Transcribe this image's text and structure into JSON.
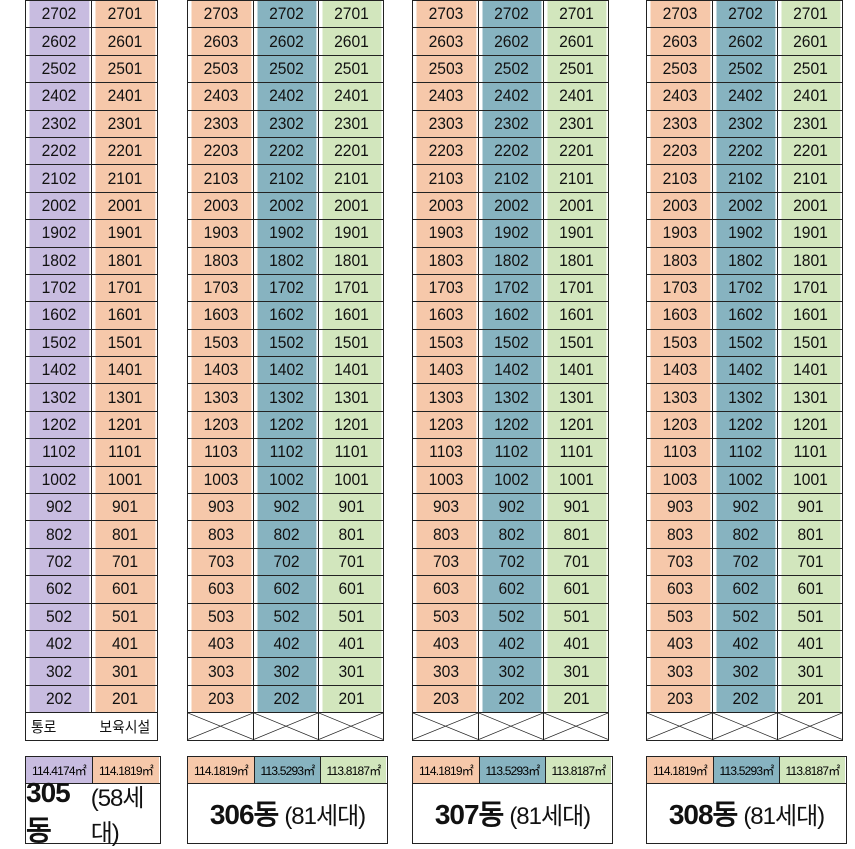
{
  "buildings": [
    {
      "id": "305",
      "name_bold": "305동",
      "name_rest": "(58세대)",
      "columns": [
        {
          "color": "#c8bce0",
          "units": [
            "2702",
            "2602",
            "2502",
            "2402",
            "2302",
            "2202",
            "2102",
            "2002",
            "1902",
            "1802",
            "1702",
            "1602",
            "1502",
            "1402",
            "1302",
            "1202",
            "1102",
            "1002",
            "902",
            "802",
            "702",
            "602",
            "502",
            "402",
            "302",
            "202"
          ]
        },
        {
          "color": "#f6c8aa",
          "units": [
            "2701",
            "2601",
            "2501",
            "2401",
            "2301",
            "2201",
            "2101",
            "2001",
            "1901",
            "1801",
            "1701",
            "1601",
            "1501",
            "1401",
            "1301",
            "1201",
            "1101",
            "1001",
            "901",
            "801",
            "701",
            "601",
            "501",
            "401",
            "301",
            "201"
          ]
        }
      ],
      "ground": [
        "통로",
        "보육시설"
      ],
      "areas": [
        "114.4174㎡",
        "114.1819㎡"
      ]
    },
    {
      "id": "306",
      "name_bold": "306동",
      "name_rest": "(81세대)",
      "columns": [
        {
          "color": "#f6c8aa",
          "units": [
            "2703",
            "2603",
            "2503",
            "2403",
            "2303",
            "2203",
            "2103",
            "2003",
            "1903",
            "1803",
            "1703",
            "1603",
            "1503",
            "1403",
            "1303",
            "1203",
            "1103",
            "1003",
            "903",
            "803",
            "703",
            "603",
            "503",
            "403",
            "303",
            "203"
          ]
        },
        {
          "color": "#87b3c0",
          "units": [
            "2702",
            "2602",
            "2502",
            "2402",
            "2302",
            "2202",
            "2102",
            "2002",
            "1902",
            "1802",
            "1702",
            "1602",
            "1502",
            "1402",
            "1302",
            "1202",
            "1102",
            "1002",
            "902",
            "802",
            "702",
            "602",
            "502",
            "402",
            "302",
            "202"
          ]
        },
        {
          "color": "#d2e6bd",
          "units": [
            "2701",
            "2601",
            "2501",
            "2401",
            "2301",
            "2201",
            "2101",
            "2001",
            "1901",
            "1801",
            "1701",
            "1601",
            "1501",
            "1401",
            "1301",
            "1201",
            "1101",
            "1001",
            "901",
            "801",
            "701",
            "601",
            "501",
            "401",
            "301",
            "201"
          ]
        }
      ],
      "areas": [
        "114.1819㎡",
        "113.5293㎡",
        "113.8187㎡"
      ]
    },
    {
      "id": "307",
      "name_bold": "307동",
      "name_rest": "(81세대)",
      "columns": [
        {
          "color": "#f6c8aa",
          "units": [
            "2703",
            "2603",
            "2503",
            "2403",
            "2303",
            "2203",
            "2103",
            "2003",
            "1903",
            "1803",
            "1703",
            "1603",
            "1503",
            "1403",
            "1303",
            "1203",
            "1103",
            "1003",
            "903",
            "803",
            "703",
            "603",
            "503",
            "403",
            "303",
            "203"
          ]
        },
        {
          "color": "#87b3c0",
          "units": [
            "2702",
            "2602",
            "2502",
            "2402",
            "2302",
            "2202",
            "2102",
            "2002",
            "1902",
            "1802",
            "1702",
            "1602",
            "1502",
            "1402",
            "1302",
            "1202",
            "1102",
            "1002",
            "902",
            "802",
            "702",
            "602",
            "502",
            "402",
            "302",
            "202"
          ]
        },
        {
          "color": "#d2e6bd",
          "units": [
            "2701",
            "2601",
            "2501",
            "2401",
            "2301",
            "2201",
            "2101",
            "2001",
            "1901",
            "1801",
            "1701",
            "1601",
            "1501",
            "1401",
            "1301",
            "1201",
            "1101",
            "1001",
            "901",
            "801",
            "701",
            "601",
            "501",
            "401",
            "301",
            "201"
          ]
        }
      ],
      "areas": [
        "114.1819㎡",
        "113.5293㎡",
        "113.8187㎡"
      ]
    },
    {
      "id": "308",
      "name_bold": "308동",
      "name_rest": "(81세대)",
      "columns": [
        {
          "color": "#f6c8aa",
          "units": [
            "2703",
            "2603",
            "2503",
            "2403",
            "2303",
            "2203",
            "2103",
            "2003",
            "1903",
            "1803",
            "1703",
            "1603",
            "1503",
            "1403",
            "1303",
            "1203",
            "1103",
            "1003",
            "903",
            "803",
            "703",
            "603",
            "503",
            "403",
            "303",
            "203"
          ]
        },
        {
          "color": "#87b3c0",
          "units": [
            "2702",
            "2602",
            "2502",
            "2402",
            "2302",
            "2202",
            "2102",
            "2002",
            "1902",
            "1802",
            "1702",
            "1602",
            "1502",
            "1402",
            "1302",
            "1202",
            "1102",
            "1002",
            "902",
            "802",
            "702",
            "602",
            "502",
            "402",
            "302",
            "202"
          ]
        },
        {
          "color": "#d2e6bd",
          "units": [
            "2701",
            "2601",
            "2501",
            "2401",
            "2301",
            "2201",
            "2101",
            "2001",
            "1901",
            "1801",
            "1701",
            "1601",
            "1501",
            "1401",
            "1301",
            "1201",
            "1101",
            "1001",
            "901",
            "801",
            "701",
            "601",
            "501",
            "401",
            "301",
            "201"
          ]
        }
      ],
      "areas": [
        "114.1819㎡",
        "113.5293㎡",
        "113.8187㎡"
      ]
    }
  ]
}
